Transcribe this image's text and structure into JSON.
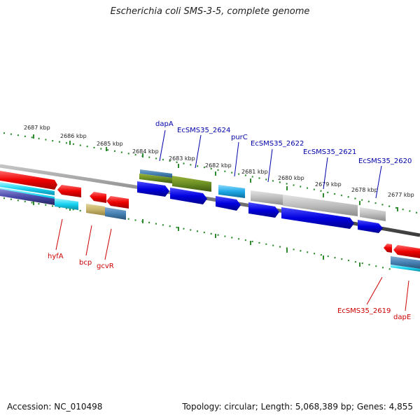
{
  "title": "Escherichia coli SMS-3-5, complete genome",
  "footer": {
    "accession": "Accession: NC_010498",
    "topology": "Topology: circular; Length: 5,068,389 bp; Genes: 4,855"
  },
  "colors": {
    "backbone": "#808080",
    "tick": "#2e8b2e",
    "reverse_label": "#cc0000",
    "forward_label": "#0000aa"
  },
  "ticks": [
    {
      "label": "2687 kbp"
    },
    {
      "label": "2686 kbp"
    },
    {
      "label": "2685 kbp"
    },
    {
      "label": "2684 kbp"
    },
    {
      "label": "2683 kbp"
    },
    {
      "label": "2682 kbp"
    },
    {
      "label": "2681 kbp"
    },
    {
      "label": "2680 kbp"
    },
    {
      "label": "2679 kbp"
    },
    {
      "label": "2678 kbp"
    },
    {
      "label": "2677 kbp"
    }
  ],
  "gene_labels": {
    "forward": [
      {
        "name": "dapA"
      },
      {
        "name": "EcSMS35_2624"
      },
      {
        "name": "purC"
      },
      {
        "name": "EcSMS35_2622"
      },
      {
        "name": "EcSMS35_2621"
      },
      {
        "name": "EcSMS35_2620"
      }
    ],
    "reverse": [
      {
        "name": "hyfA"
      },
      {
        "name": "bcp"
      },
      {
        "name": "gcvR"
      },
      {
        "name": "EcSMS35_2619"
      },
      {
        "name": "dapE"
      }
    ]
  }
}
